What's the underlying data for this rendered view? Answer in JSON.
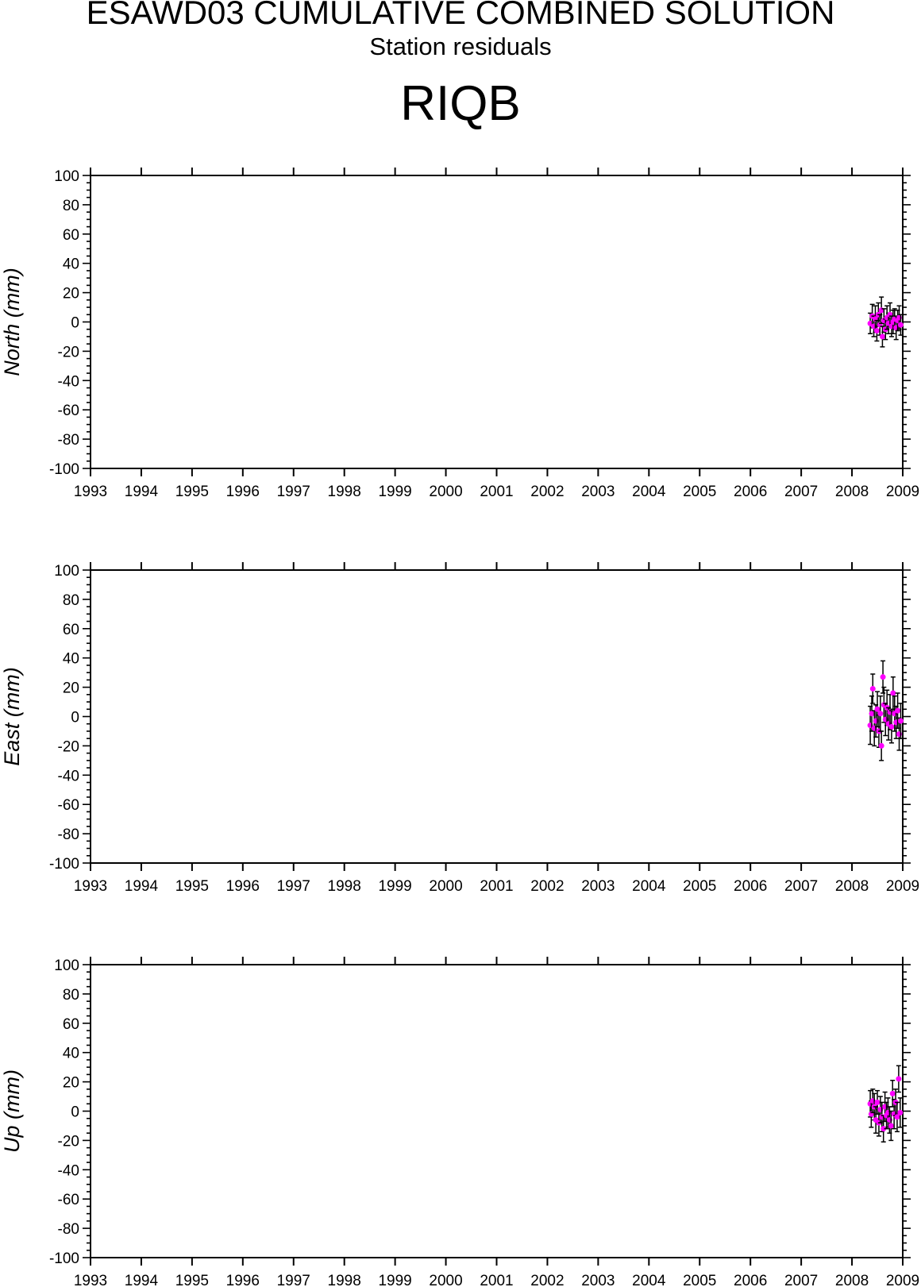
{
  "figure": {
    "title": "ESAWD03 CUMULATIVE COMBINED SOLUTION",
    "subtitle": "Station residuals",
    "station": "RIQB"
  },
  "colors": {
    "marker": "#ff00ff",
    "errorbar": "#000000",
    "axis": "#000000"
  },
  "chart_data": [
    {
      "type": "scatter",
      "ylabel": "North (mm)",
      "xlim": [
        1993,
        2009
      ],
      "ylim": [
        -100,
        100
      ],
      "xticks": [
        1993,
        1994,
        1995,
        1996,
        1997,
        1998,
        1999,
        2000,
        2001,
        2002,
        2003,
        2004,
        2005,
        2006,
        2007,
        2008,
        2009
      ],
      "yticks": [
        -100,
        -80,
        -60,
        -40,
        -20,
        0,
        20,
        40,
        60,
        80,
        100
      ],
      "points": [
        {
          "x": 2008.36,
          "y": -1,
          "err": 7
        },
        {
          "x": 2008.4,
          "y": 4,
          "err": 8
        },
        {
          "x": 2008.43,
          "y": -3,
          "err": 7
        },
        {
          "x": 2008.46,
          "y": 2,
          "err": 9
        },
        {
          "x": 2008.49,
          "y": -6,
          "err": 7
        },
        {
          "x": 2008.52,
          "y": 5,
          "err": 8
        },
        {
          "x": 2008.55,
          "y": -2,
          "err": 7
        },
        {
          "x": 2008.58,
          "y": 8,
          "err": 9
        },
        {
          "x": 2008.6,
          "y": -10,
          "err": 7
        },
        {
          "x": 2008.63,
          "y": 1,
          "err": 8
        },
        {
          "x": 2008.66,
          "y": -5,
          "err": 7
        },
        {
          "x": 2008.69,
          "y": 3,
          "err": 8
        },
        {
          "x": 2008.72,
          "y": -1,
          "err": 7
        },
        {
          "x": 2008.75,
          "y": 5,
          "err": 8
        },
        {
          "x": 2008.78,
          "y": -3,
          "err": 7
        },
        {
          "x": 2008.81,
          "y": 0,
          "err": 8
        },
        {
          "x": 2008.84,
          "y": 2,
          "err": 7
        },
        {
          "x": 2008.87,
          "y": -4,
          "err": 8
        },
        {
          "x": 2008.9,
          "y": 1,
          "err": 7
        },
        {
          "x": 2008.93,
          "y": 3,
          "err": 8
        },
        {
          "x": 2008.96,
          "y": -2,
          "err": 7
        }
      ]
    },
    {
      "type": "scatter",
      "ylabel": "East (mm)",
      "xlim": [
        1993,
        2009
      ],
      "ylim": [
        -100,
        100
      ],
      "xticks": [
        1993,
        1994,
        1995,
        1996,
        1997,
        1998,
        1999,
        2000,
        2001,
        2002,
        2003,
        2004,
        2005,
        2006,
        2007,
        2008,
        2009
      ],
      "yticks": [
        -100,
        -80,
        -60,
        -40,
        -20,
        0,
        20,
        40,
        60,
        80,
        100
      ],
      "points": [
        {
          "x": 2008.36,
          "y": -6,
          "err": 13
        },
        {
          "x": 2008.39,
          "y": 2,
          "err": 12
        },
        {
          "x": 2008.41,
          "y": 19,
          "err": 10
        },
        {
          "x": 2008.44,
          "y": -8,
          "err": 12
        },
        {
          "x": 2008.47,
          "y": -3,
          "err": 11
        },
        {
          "x": 2008.5,
          "y": 5,
          "err": 12
        },
        {
          "x": 2008.53,
          "y": -10,
          "err": 11
        },
        {
          "x": 2008.56,
          "y": 2,
          "err": 12
        },
        {
          "x": 2008.58,
          "y": -20,
          "err": 10
        },
        {
          "x": 2008.61,
          "y": 27,
          "err": 11
        },
        {
          "x": 2008.63,
          "y": 8,
          "err": 12
        },
        {
          "x": 2008.66,
          "y": -2,
          "err": 11
        },
        {
          "x": 2008.69,
          "y": 6,
          "err": 12
        },
        {
          "x": 2008.72,
          "y": -5,
          "err": 11
        },
        {
          "x": 2008.75,
          "y": 3,
          "err": 12
        },
        {
          "x": 2008.78,
          "y": -7,
          "err": 11
        },
        {
          "x": 2008.81,
          "y": 16,
          "err": 11
        },
        {
          "x": 2008.84,
          "y": 2,
          "err": 12
        },
        {
          "x": 2008.87,
          "y": -4,
          "err": 11
        },
        {
          "x": 2008.9,
          "y": 4,
          "err": 12
        },
        {
          "x": 2008.93,
          "y": -12,
          "err": 11
        },
        {
          "x": 2008.96,
          "y": -3,
          "err": 12
        }
      ]
    },
    {
      "type": "scatter",
      "ylabel": "Up (mm)",
      "xlim": [
        1993,
        2009
      ],
      "ylim": [
        -100,
        100
      ],
      "xticks": [
        1993,
        1994,
        1995,
        1996,
        1997,
        1998,
        1999,
        2000,
        2001,
        2002,
        2003,
        2004,
        2005,
        2006,
        2007,
        2008,
        2009
      ],
      "yticks": [
        -100,
        -80,
        -60,
        -40,
        -20,
        0,
        20,
        40,
        60,
        80,
        100
      ],
      "points": [
        {
          "x": 2008.36,
          "y": 5,
          "err": 9
        },
        {
          "x": 2008.38,
          "y": -2,
          "err": 9
        },
        {
          "x": 2008.41,
          "y": 7,
          "err": 8
        },
        {
          "x": 2008.44,
          "y": 3,
          "err": 9
        },
        {
          "x": 2008.47,
          "y": -6,
          "err": 9
        },
        {
          "x": 2008.5,
          "y": 6,
          "err": 8
        },
        {
          "x": 2008.53,
          "y": -8,
          "err": 9
        },
        {
          "x": 2008.56,
          "y": 1,
          "err": 9
        },
        {
          "x": 2008.59,
          "y": -4,
          "err": 10
        },
        {
          "x": 2008.62,
          "y": -12,
          "err": 9
        },
        {
          "x": 2008.65,
          "y": 3,
          "err": 10
        },
        {
          "x": 2008.68,
          "y": -3,
          "err": 9
        },
        {
          "x": 2008.71,
          "y": -1,
          "err": 10
        },
        {
          "x": 2008.74,
          "y": -6,
          "err": 9
        },
        {
          "x": 2008.77,
          "y": -10,
          "err": 10
        },
        {
          "x": 2008.8,
          "y": 12,
          "err": 9
        },
        {
          "x": 2008.83,
          "y": -2,
          "err": 10
        },
        {
          "x": 2008.86,
          "y": 6,
          "err": 9
        },
        {
          "x": 2008.89,
          "y": -4,
          "err": 10
        },
        {
          "x": 2008.92,
          "y": 22,
          "err": 9
        },
        {
          "x": 2008.95,
          "y": -1,
          "err": 10
        }
      ]
    }
  ]
}
